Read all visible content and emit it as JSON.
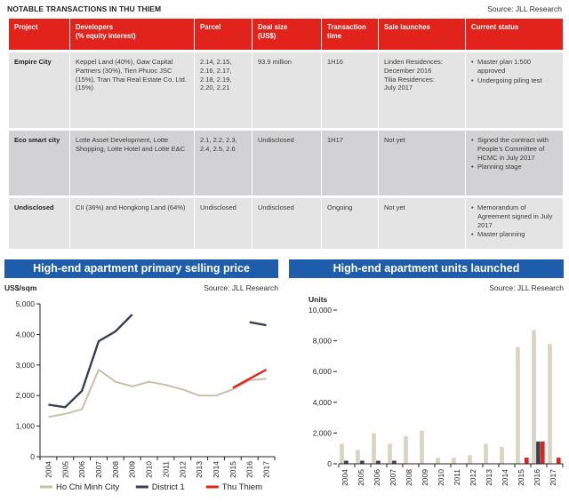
{
  "table_section": {
    "title": "NOTABLE TRANSACTIONS IN THU THIEM",
    "source": "Source: JLL Research",
    "columns": [
      "Project",
      "Developers\n(% equity interest)",
      "Parcel",
      "Deal size\n(US$)",
      "Transaction\ntime",
      "Sale launches",
      "Current status"
    ],
    "rows": [
      {
        "project": "Empire City",
        "developers": "Keppel Land (40%), Gaw Capital Partners (30%), Tien Phuoc JSC (15%), Tran Thai Real Estate Co. Ltd. (15%)",
        "parcel": "2.14, 2.15, 2.16, 2.17, 2.18, 2.19, 2.20, 2.21",
        "deal_size": "93.9 million",
        "transaction_time": "1H16",
        "sale_launches": "Linden Residences:\nDecember 2016\nTilia Residences:\nJuly 2017",
        "current_status": [
          "Master plan 1:500 approved",
          "Undergoing piling test"
        ]
      },
      {
        "project": "Eco smart city",
        "developers": "Lotte Asset Development, Lotte Shopping, Lotte Hotel and Lotte E&C",
        "parcel": "2.1, 2.2, 2.3, 2.4, 2.5, 2.6",
        "deal_size": "Undisclosed",
        "transaction_time": "1H17",
        "sale_launches": "Not yet",
        "current_status": [
          "Signed the contract with People’s Committee of HCMC in July 2017",
          "Planning stage"
        ]
      },
      {
        "project": "Undisclosed",
        "developers": "CII (36%) and Hongkong Land (64%)",
        "parcel": "Undisclosed",
        "deal_size": "Undisclosed",
        "transaction_time": "Ongoing",
        "sale_launches": "Not yet",
        "current_status": [
          "Memorandum of Agreement signed in July 2017",
          "Master planning"
        ]
      }
    ]
  },
  "chart_data": [
    {
      "type": "line",
      "title": "High-end apartment primary selling price",
      "source": "Source: JLL Research",
      "ylabel": "US$/sqm",
      "ylim": [
        0,
        5000
      ],
      "ytick_step": 1000,
      "grid": false,
      "legend_position": "bottom",
      "categories": [
        "2004",
        "2005",
        "2006",
        "2007",
        "2008",
        "2009",
        "2010",
        "2011",
        "2012",
        "2013",
        "2014",
        "2015",
        "2016",
        "2017"
      ],
      "series": [
        {
          "name": "Ho Chi Minh City",
          "color": "#c8bfa8",
          "values": [
            1300,
            1400,
            1550,
            2850,
            2450,
            2300,
            2450,
            2350,
            2200,
            2000,
            2000,
            2200,
            2500,
            2550
          ]
        },
        {
          "name": "District 1",
          "color": "#39404e",
          "values": [
            1700,
            1620,
            2150,
            3780,
            4100,
            4650,
            null,
            null,
            null,
            null,
            null,
            null,
            4400,
            4300
          ]
        },
        {
          "name": "Thu Thiem",
          "color": "#e2231b",
          "values": [
            null,
            null,
            null,
            null,
            null,
            null,
            null,
            null,
            null,
            null,
            null,
            2250,
            2550,
            2850
          ]
        }
      ]
    },
    {
      "type": "bar",
      "title": "High-end apartment units launched",
      "source": "Source: JLL Research",
      "ylabel": "Units",
      "ylim": [
        0,
        10000
      ],
      "ytick_step": 2000,
      "grid": false,
      "legend_position": "none",
      "categories": [
        "2004",
        "2005",
        "2006",
        "2007",
        "2008",
        "2009",
        "2010",
        "2011",
        "2012",
        "2013",
        "2014",
        "2015",
        "2016",
        "2017"
      ],
      "series": [
        {
          "name": "Ho Chi Minh City",
          "color": "#d9d3c1",
          "values": [
            1300,
            900,
            2000,
            1300,
            1800,
            2150,
            400,
            400,
            550,
            1300,
            1100,
            7600,
            8700,
            7800
          ]
        },
        {
          "name": "District 1",
          "color": "#39404e",
          "values": [
            200,
            200,
            200,
            200,
            0,
            0,
            0,
            0,
            0,
            0,
            0,
            0,
            1450,
            0
          ]
        },
        {
          "name": "Thu Thiem",
          "color": "#e2231b",
          "values": [
            0,
            0,
            0,
            0,
            0,
            0,
            0,
            0,
            0,
            0,
            0,
            400,
            1450,
            400
          ]
        }
      ]
    }
  ],
  "colors": {
    "header_red": "#e2231b",
    "chart_blue": "#1e5dab",
    "row_light": "#e4e4e5",
    "row_dark": "#d2d2d4",
    "axis_text": "#231f20"
  }
}
